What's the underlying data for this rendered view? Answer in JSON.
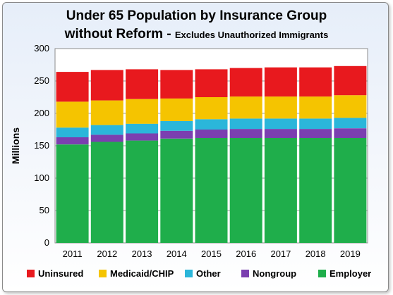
{
  "chart_data": {
    "type": "bar",
    "stacked": true,
    "title": "Under 65 Population by Insurance Group",
    "title_line2": "without Reform - ",
    "subtitle": "Excludes Unauthorized Immigrants",
    "ylabel": "Millions",
    "xlabel": "",
    "ylim": [
      0,
      300
    ],
    "yticks": [
      0,
      50,
      100,
      150,
      200,
      250,
      300
    ],
    "grid": true,
    "legend_position": "bottom",
    "categories": [
      "2011",
      "2012",
      "2013",
      "2014",
      "2015",
      "2016",
      "2017",
      "2018",
      "2019"
    ],
    "series": [
      {
        "name": "Employer",
        "color": "#1fae4b",
        "values": [
          152,
          156,
          158,
          161,
          162,
          162,
          162,
          162,
          162
        ]
      },
      {
        "name": "Nongroup",
        "color": "#7b3fb0",
        "values": [
          11,
          11,
          11,
          12,
          13,
          14,
          14,
          14,
          15
        ]
      },
      {
        "name": "Other",
        "color": "#2bb6da",
        "values": [
          15,
          15,
          15,
          15,
          16,
          16,
          16,
          16,
          16
        ]
      },
      {
        "name": "Medicaid/CHIP",
        "color": "#f5c400",
        "values": [
          40,
          38,
          38,
          35,
          34,
          34,
          34,
          34,
          35
        ]
      },
      {
        "name": "Uninsured",
        "color": "#e8191e",
        "values": [
          46,
          47,
          46,
          44,
          43,
          44,
          45,
          45,
          45
        ]
      }
    ],
    "legend_order": [
      "Uninsured",
      "Medicaid/CHIP",
      "Other",
      "Nongroup",
      "Employer"
    ]
  }
}
